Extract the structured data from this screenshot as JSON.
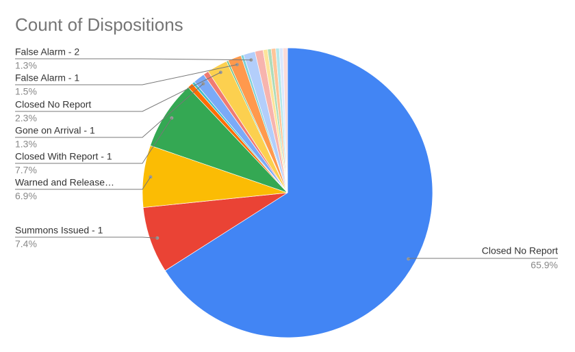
{
  "chart_data": {
    "type": "pie",
    "title": "Count of Dispositions",
    "categories": [
      "Closed No Report",
      "Summons Issued - 1",
      "Warned and Release…",
      "Closed With Report - 1",
      null,
      null,
      "Gone on Arrival - 1",
      null,
      "Closed No Report",
      null,
      "False Alarm - 1",
      null,
      "False Alarm - 2",
      null,
      null,
      null,
      null,
      null,
      null,
      null
    ],
    "values": [
      65.9,
      7.4,
      6.9,
      7.7,
      0.6,
      0.3,
      1.3,
      0.6,
      2.3,
      0.2,
      1.5,
      0.3,
      1.3,
      0.9,
      0.5,
      0.4,
      0.5,
      0.4,
      0.4,
      0.5
    ],
    "value_labels": [
      "65.9%",
      "7.4%",
      "6.9%",
      "7.7%",
      null,
      null,
      "1.3%",
      null,
      "2.3%",
      null,
      "1.5%",
      null,
      "1.3%",
      null,
      null,
      null,
      null,
      null,
      null,
      null
    ],
    "colors": [
      "#4285f4",
      "#ea4335",
      "#fbbc04",
      "#34a853",
      "#ff6d01",
      "#46bdc6",
      "#7baaf7",
      "#f07b72",
      "#fcd04f",
      "#71c287",
      "#ff994d",
      "#7ed1d7",
      "#b3cefb",
      "#f7b4ae",
      "#fde49b",
      "#aedcba",
      "#ffc599",
      "#b5e8eb",
      "#dce8fd",
      "#fbdcd9"
    ]
  }
}
